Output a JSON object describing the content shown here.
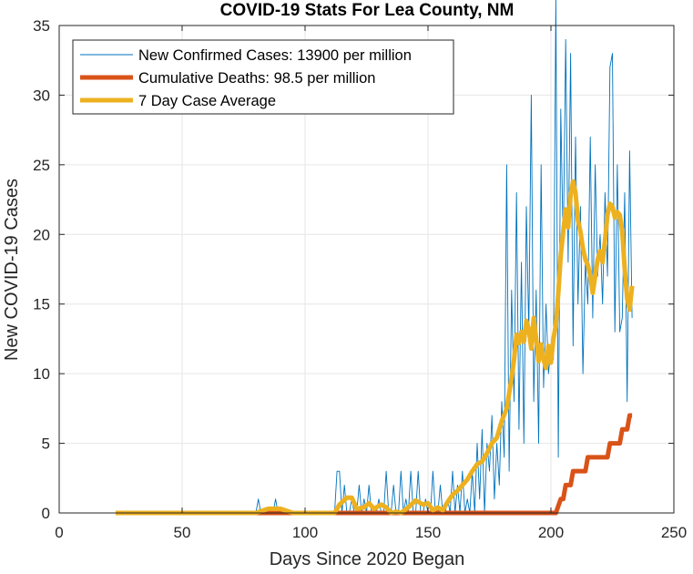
{
  "chart_data": {
    "type": "line",
    "title": "COVID-19 Stats For Lea County, NM",
    "xlabel": "Days Since 2020 Began",
    "ylabel": "New COVID-19 Cases",
    "xlim": [
      0,
      250
    ],
    "ylim": [
      0,
      35
    ],
    "xticks": [
      0,
      50,
      100,
      150,
      200,
      250
    ],
    "yticks": [
      0,
      5,
      10,
      15,
      20,
      25,
      30,
      35
    ],
    "grid": true,
    "legend_position": "top-left",
    "series": [
      {
        "name": "New Confirmed Cases: 13900 per million",
        "color": "#0072BD",
        "style": "thin",
        "x": [
          23,
          80,
          81,
          82,
          83,
          87,
          88,
          89,
          90,
          112,
          113,
          114,
          115,
          116,
          117,
          118,
          119,
          120,
          121,
          122,
          123,
          124,
          125,
          126,
          127,
          128,
          129,
          130,
          131,
          132,
          133,
          134,
          135,
          136,
          137,
          138,
          139,
          140,
          141,
          142,
          143,
          144,
          145,
          146,
          147,
          148,
          149,
          150,
          151,
          152,
          153,
          154,
          155,
          156,
          157,
          158,
          159,
          160,
          161,
          162,
          163,
          164,
          165,
          166,
          167,
          168,
          169,
          170,
          171,
          172,
          173,
          174,
          175,
          176,
          177,
          178,
          179,
          180,
          181,
          182,
          183,
          184,
          185,
          186,
          187,
          188,
          189,
          190,
          191,
          192,
          193,
          194,
          195,
          196,
          197,
          198,
          199,
          200,
          201,
          202,
          203,
          204,
          205,
          206,
          207,
          208,
          209,
          210,
          211,
          212,
          213,
          214,
          215,
          216,
          217,
          218,
          219,
          220,
          221,
          222,
          223,
          224,
          225,
          226,
          227,
          228,
          229,
          230,
          231,
          232,
          233
        ],
        "values": [
          0,
          0,
          1,
          0,
          0,
          0,
          1,
          0,
          0,
          0,
          3,
          3,
          0,
          2,
          0,
          0,
          1,
          0,
          0,
          2,
          0,
          1,
          0,
          2,
          0,
          0,
          0,
          1,
          0,
          0,
          3,
          0,
          0,
          2,
          0,
          0,
          3,
          0,
          1,
          0,
          3,
          0,
          0,
          3,
          0,
          0,
          1,
          0,
          0,
          3,
          0,
          0,
          2,
          0,
          0,
          1,
          0,
          3,
          0,
          2,
          0,
          3,
          0,
          1,
          0,
          3,
          0,
          5,
          1,
          6,
          0,
          5,
          3,
          7,
          1,
          5,
          2,
          8,
          4,
          25,
          3,
          16,
          8,
          23,
          6,
          18,
          5,
          22,
          13,
          30,
          8,
          16,
          5,
          25,
          9,
          15,
          10,
          12,
          11,
          37,
          4,
          29,
          19,
          34,
          18,
          33,
          12,
          27,
          15,
          22,
          10,
          18,
          15,
          27,
          14,
          25,
          17,
          20,
          15,
          23,
          17,
          32,
          33,
          13,
          25,
          13,
          14,
          23,
          8,
          26,
          14
        ],
        "y_is_daily_count": true
      },
      {
        "name": "Cumulative Deaths: 98.5 per million",
        "color": "#D95319",
        "style": "thick",
        "x": [
          23,
          202,
          204,
          205,
          206,
          208,
          209,
          212,
          214,
          215,
          219,
          220,
          223,
          224,
          225,
          228,
          229,
          231,
          232,
          233
        ],
        "values": [
          0,
          0,
          1,
          1,
          2,
          2,
          3,
          3,
          3,
          4,
          4,
          4,
          4,
          5,
          5,
          5,
          6,
          6,
          7,
          7
        ]
      },
      {
        "name": "7 Day Case Average",
        "color": "#EDB120",
        "style": "thick",
        "x": [
          23,
          80,
          85,
          90,
          95,
          112,
          114,
          117,
          119,
          121,
          124,
          126,
          128,
          131,
          133,
          135,
          137,
          139,
          142,
          145,
          148,
          150,
          152,
          154,
          156,
          158,
          160,
          162,
          164,
          166,
          168,
          170,
          172,
          174,
          176,
          178,
          180,
          182,
          184,
          185,
          186,
          187,
          188,
          189,
          190,
          191,
          192,
          193,
          194,
          195,
          196,
          197,
          198,
          199,
          200,
          201,
          202,
          203,
          204,
          205,
          206,
          207,
          208,
          209,
          210,
          211,
          212,
          213,
          214,
          215,
          216,
          217,
          218,
          219,
          220,
          221,
          222,
          223,
          224,
          225,
          226,
          227,
          228,
          229,
          230,
          231,
          232,
          233
        ],
        "values": [
          0,
          0,
          0.3,
          0.3,
          0,
          0,
          0.6,
          1.1,
          1.1,
          0.3,
          0.4,
          0.7,
          0.3,
          0.6,
          0.4,
          0,
          0.1,
          0,
          0.4,
          0.9,
          0.6,
          0.7,
          0.2,
          0.4,
          0.2,
          0.8,
          1.3,
          1.6,
          2.0,
          2.4,
          3.0,
          3.5,
          3.7,
          4.3,
          5.0,
          5.4,
          6.6,
          7.5,
          9.7,
          11.0,
          12.8,
          12.2,
          13.0,
          12.3,
          13.8,
          13.2,
          11.8,
          14.0,
          12.5,
          10.9,
          12.1,
          11.0,
          10.4,
          12.0,
          10.8,
          12.5,
          13.5,
          15.8,
          18.5,
          20.2,
          21.8,
          20.5,
          22.8,
          23.8,
          23.0,
          21.0,
          20.2,
          19.0,
          18.2,
          17.8,
          17.0,
          15.8,
          17.0,
          18.2,
          18.8,
          18.0,
          19.6,
          21.4,
          22.2,
          22.0,
          21.2,
          21.6,
          21.4,
          20.2,
          17.5,
          15.4,
          14.6,
          16.3
        ]
      }
    ]
  }
}
